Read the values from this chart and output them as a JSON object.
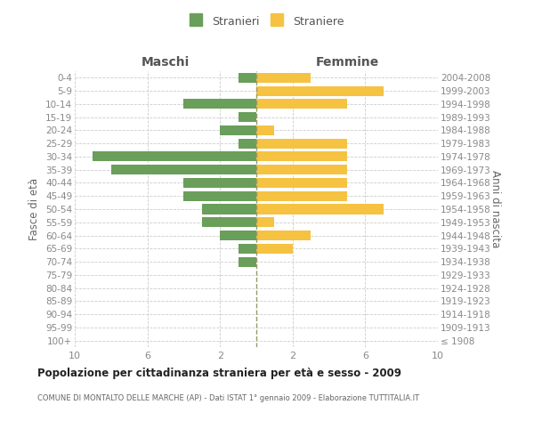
{
  "age_groups": [
    "100+",
    "95-99",
    "90-94",
    "85-89",
    "80-84",
    "75-79",
    "70-74",
    "65-69",
    "60-64",
    "55-59",
    "50-54",
    "45-49",
    "40-44",
    "35-39",
    "30-34",
    "25-29",
    "20-24",
    "15-19",
    "10-14",
    "5-9",
    "0-4"
  ],
  "birth_years": [
    "≤ 1908",
    "1909-1913",
    "1914-1918",
    "1919-1923",
    "1924-1928",
    "1929-1933",
    "1934-1938",
    "1939-1943",
    "1944-1948",
    "1949-1953",
    "1954-1958",
    "1959-1963",
    "1964-1968",
    "1969-1973",
    "1974-1978",
    "1979-1983",
    "1984-1988",
    "1989-1993",
    "1994-1998",
    "1999-2003",
    "2004-2008"
  ],
  "males": [
    0,
    0,
    0,
    0,
    0,
    0,
    1,
    1,
    2,
    3,
    3,
    4,
    4,
    8,
    9,
    1,
    2,
    1,
    4,
    0,
    1
  ],
  "females": [
    0,
    0,
    0,
    0,
    0,
    0,
    0,
    2,
    3,
    1,
    7,
    5,
    5,
    5,
    5,
    5,
    1,
    0,
    5,
    7,
    3
  ],
  "male_color": "#6a9e5b",
  "female_color": "#f5c242",
  "dashed_line_color": "#999966",
  "background_color": "#ffffff",
  "grid_color": "#cccccc",
  "title": "Popolazione per cittadinanza straniera per età e sesso - 2009",
  "subtitle": "COMUNE DI MONTALTO DELLE MARCHE (AP) - Dati ISTAT 1° gennaio 2009 - Elaborazione TUTTITALIA.IT",
  "ylabel_left": "Fasce di età",
  "ylabel_right": "Anni di nascita",
  "legend_males": "Stranieri",
  "legend_females": "Straniere",
  "xlim": 10,
  "bar_height": 0.75,
  "maschi_label": "Maschi",
  "femmine_label": "Femmine"
}
